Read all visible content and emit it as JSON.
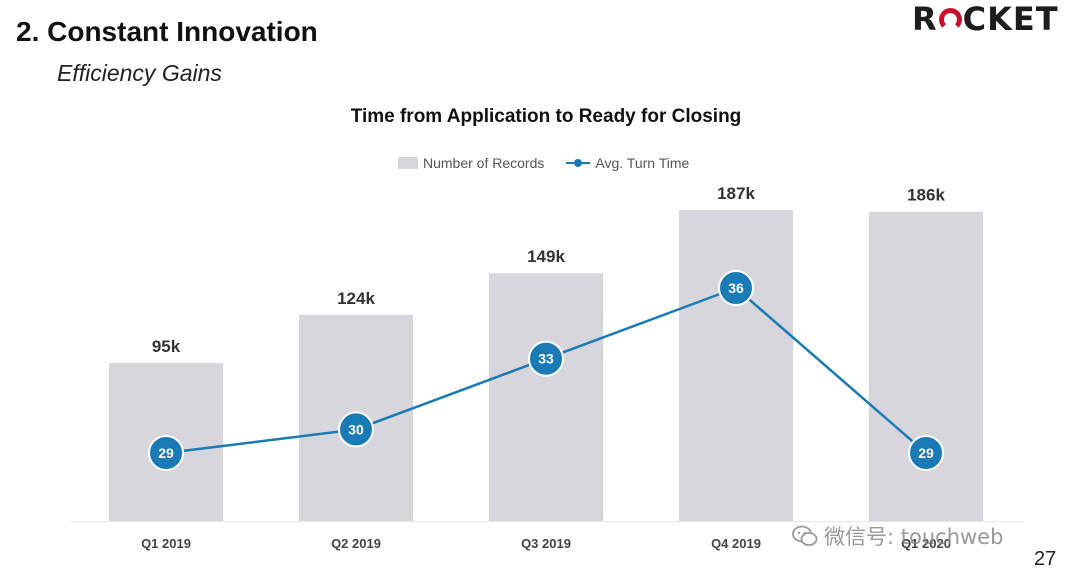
{
  "header": {
    "title": "2. Constant Innovation",
    "subtitle": "Efficiency Gains",
    "logo_text": "ROCKET"
  },
  "legend": {
    "bars_label": "Number of Records",
    "line_label": "Avg. Turn Time"
  },
  "page_number": "27",
  "watermark": "微信号: touchweb",
  "colors": {
    "bar": "#d7d6dc",
    "line": "#1a7ab5",
    "logo_accent": "#c8102e"
  },
  "chart_data": {
    "type": "bar",
    "title": "Time from Application to Ready for Closing",
    "categories": [
      "Q1 2019",
      "Q2 2019",
      "Q3 2019",
      "Q4 2019",
      "Q1 2020"
    ],
    "series": [
      {
        "name": "Number of Records",
        "type": "bar",
        "values": [
          95,
          124,
          149,
          187,
          186
        ],
        "labels": [
          "95k",
          "124k",
          "149k",
          "187k",
          "186k"
        ]
      },
      {
        "name": "Avg. Turn Time",
        "type": "line",
        "values": [
          29,
          30,
          33,
          36,
          29
        ],
        "labels": [
          "29",
          "30",
          "33",
          "36",
          "29"
        ]
      }
    ],
    "xlabel": "",
    "ylabel": "",
    "grid": false,
    "legend_position": "top-center"
  }
}
